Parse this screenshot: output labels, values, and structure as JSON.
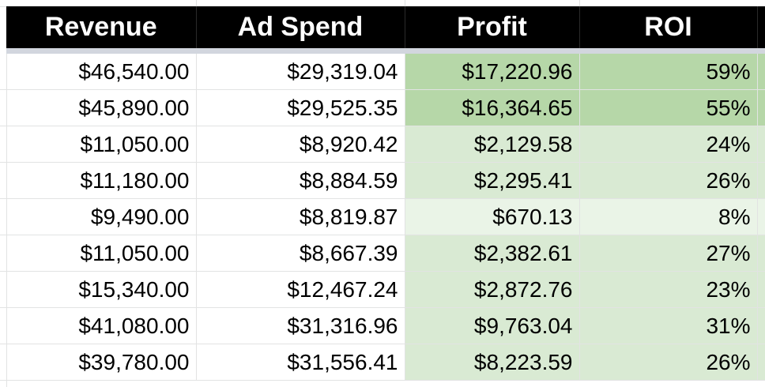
{
  "headers": [
    "Revenue",
    "Ad Spend",
    "Profit",
    "ROI"
  ],
  "rows": [
    {
      "revenue": "$46,540.00",
      "ad_spend": "$29,319.04",
      "profit": "$17,220.96",
      "roi": "59%",
      "fill": "#b6d7a8"
    },
    {
      "revenue": "$45,890.00",
      "ad_spend": "$29,525.35",
      "profit": "$16,364.65",
      "roi": "55%",
      "fill": "#b6d7a8"
    },
    {
      "revenue": "$11,050.00",
      "ad_spend": "$8,920.42",
      "profit": "$2,129.58",
      "roi": "24%",
      "fill": "#d9ead3"
    },
    {
      "revenue": "$11,180.00",
      "ad_spend": "$8,884.59",
      "profit": "$2,295.41",
      "roi": "26%",
      "fill": "#d9ead3"
    },
    {
      "revenue": "$9,490.00",
      "ad_spend": "$8,819.87",
      "profit": "$670.13",
      "roi": "8%",
      "fill": "#eaf4e7"
    },
    {
      "revenue": "$11,050.00",
      "ad_spend": "$8,667.39",
      "profit": "$2,382.61",
      "roi": "27%",
      "fill": "#d9ead3"
    },
    {
      "revenue": "$15,340.00",
      "ad_spend": "$12,467.24",
      "profit": "$2,872.76",
      "roi": "23%",
      "fill": "#d9ead3"
    },
    {
      "revenue": "$41,080.00",
      "ad_spend": "$31,316.96",
      "profit": "$9,763.04",
      "roi": "31%",
      "fill": "#d9ead3"
    },
    {
      "revenue": "$39,780.00",
      "ad_spend": "$31,556.41",
      "profit": "$8,223.59",
      "roi": "26%",
      "fill": "#d9ead3"
    }
  ],
  "colors": {
    "header_bg": "#000000",
    "header_text": "#ffffff",
    "gridline": "#e2e3e3",
    "profit_high": "#b6d7a8",
    "profit_mid": "#d9ead3",
    "profit_low": "#eaf4e7"
  }
}
